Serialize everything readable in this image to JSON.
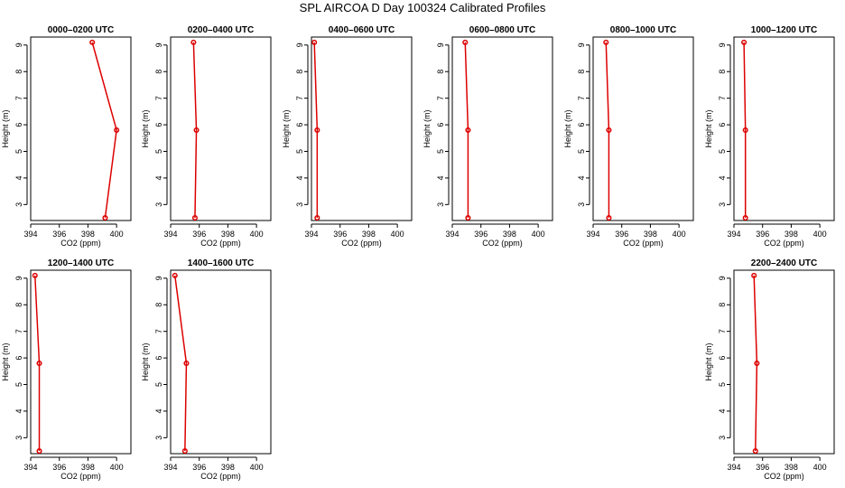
{
  "figure": {
    "title": "SPL AIRCOA D  Day 100324  Calibrated Profiles"
  },
  "chart_data": [
    {
      "type": "line",
      "title": "0000–0200 UTC",
      "xlabel": "CO2 (ppm)",
      "ylabel": "Height (m)",
      "xlim": [
        394,
        401
      ],
      "ylim": [
        2.4,
        9.3
      ],
      "xticks": [
        394,
        396,
        398,
        400
      ],
      "yticks": [
        3,
        4,
        5,
        6,
        7,
        8,
        9
      ],
      "series": [
        {
          "x": [
            398.3,
            400.0,
            399.2
          ],
          "y": [
            9.1,
            5.8,
            2.5
          ]
        }
      ]
    },
    {
      "type": "line",
      "title": "0200–0400 UTC",
      "xlabel": "CO2 (ppm)",
      "ylabel": "Height (m)",
      "xlim": [
        394,
        401
      ],
      "ylim": [
        2.4,
        9.3
      ],
      "xticks": [
        394,
        396,
        398,
        400
      ],
      "yticks": [
        3,
        4,
        5,
        6,
        7,
        8,
        9
      ],
      "series": [
        {
          "x": [
            395.6,
            395.8,
            395.7
          ],
          "y": [
            9.1,
            5.8,
            2.5
          ]
        }
      ]
    },
    {
      "type": "line",
      "title": "0400–0600 UTC",
      "xlabel": "CO2 (ppm)",
      "ylabel": "Height (m)",
      "xlim": [
        394,
        401
      ],
      "ylim": [
        2.4,
        9.3
      ],
      "xticks": [
        394,
        396,
        398,
        400
      ],
      "yticks": [
        3,
        4,
        5,
        6,
        7,
        8,
        9
      ],
      "series": [
        {
          "x": [
            394.2,
            394.4,
            394.4
          ],
          "y": [
            9.1,
            5.8,
            2.5
          ]
        }
      ]
    },
    {
      "type": "line",
      "title": "0600–0800 UTC",
      "xlabel": "CO2 (ppm)",
      "ylabel": "Height (m)",
      "xlim": [
        394,
        401
      ],
      "ylim": [
        2.4,
        9.3
      ],
      "xticks": [
        394,
        396,
        398,
        400
      ],
      "yticks": [
        3,
        4,
        5,
        6,
        7,
        8,
        9
      ],
      "series": [
        {
          "x": [
            394.9,
            395.1,
            395.1
          ],
          "y": [
            9.1,
            5.8,
            2.5
          ]
        }
      ]
    },
    {
      "type": "line",
      "title": "0800–1000 UTC",
      "xlabel": "CO2 (ppm)",
      "ylabel": "Height (m)",
      "xlim": [
        394,
        401
      ],
      "ylim": [
        2.4,
        9.3
      ],
      "xticks": [
        394,
        396,
        398,
        400
      ],
      "yticks": [
        3,
        4,
        5,
        6,
        7,
        8,
        9
      ],
      "series": [
        {
          "x": [
            394.9,
            395.1,
            395.1
          ],
          "y": [
            9.1,
            5.8,
            2.5
          ]
        }
      ]
    },
    {
      "type": "line",
      "title": "1000–1200 UTC",
      "xlabel": "CO2 (ppm)",
      "ylabel": "Height (m)",
      "xlim": [
        394,
        401
      ],
      "ylim": [
        2.4,
        9.3
      ],
      "xticks": [
        394,
        396,
        398,
        400
      ],
      "yticks": [
        3,
        4,
        5,
        6,
        7,
        8,
        9
      ],
      "series": [
        {
          "x": [
            394.7,
            394.8,
            394.8
          ],
          "y": [
            9.1,
            5.8,
            2.5
          ]
        }
      ]
    },
    {
      "type": "line",
      "title": "1200–1400 UTC",
      "xlabel": "CO2 (ppm)",
      "ylabel": "Height (m)",
      "xlim": [
        394,
        401
      ],
      "ylim": [
        2.4,
        9.3
      ],
      "xticks": [
        394,
        396,
        398,
        400
      ],
      "yticks": [
        3,
        4,
        5,
        6,
        7,
        8,
        9
      ],
      "series": [
        {
          "x": [
            394.3,
            394.6,
            394.6
          ],
          "y": [
            9.1,
            5.8,
            2.5
          ]
        }
      ]
    },
    {
      "type": "line",
      "title": "1400–1600 UTC",
      "xlabel": "CO2 (ppm)",
      "ylabel": "Height (m)",
      "xlim": [
        394,
        401
      ],
      "ylim": [
        2.4,
        9.3
      ],
      "xticks": [
        394,
        396,
        398,
        400
      ],
      "yticks": [
        3,
        4,
        5,
        6,
        7,
        8,
        9
      ],
      "series": [
        {
          "x": [
            394.3,
            395.1,
            395.0
          ],
          "y": [
            9.1,
            5.8,
            2.5
          ]
        }
      ]
    },
    {
      "type": "line",
      "title": "2200–2400 UTC",
      "xlabel": "CO2 (ppm)",
      "ylabel": "Height (m)",
      "xlim": [
        394,
        401
      ],
      "ylim": [
        2.4,
        9.3
      ],
      "xticks": [
        394,
        396,
        398,
        400
      ],
      "yticks": [
        3,
        4,
        5,
        6,
        7,
        8,
        9
      ],
      "series": [
        {
          "x": [
            395.4,
            395.6,
            395.5
          ],
          "y": [
            9.1,
            5.8,
            2.5
          ]
        }
      ]
    }
  ],
  "style": {
    "line_color": "#dd0000",
    "axis_color": "#000000",
    "background": "#ffffff"
  }
}
